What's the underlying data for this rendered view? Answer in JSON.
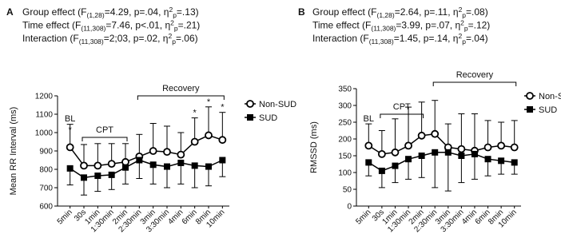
{
  "chart_data": [
    {
      "type": "line",
      "panel": "A",
      "stats": [
        [
          "Group effect (F",
          "(1,28)",
          "=4.29, p=.04, η",
          "2",
          "p",
          "=.13)"
        ],
        [
          "Time effect (F",
          "(11,308)",
          "=7.46, p<.01, η",
          "2",
          "p",
          "=.21)"
        ],
        [
          "Interaction (F",
          "(11,308)",
          "=2;03, p=.02, η",
          "2",
          "p",
          "=.06)"
        ]
      ],
      "ylabel": "Mean RR Interval (ms)",
      "categories": [
        "5min",
        "30s",
        "1min",
        "1:30min",
        "2min",
        "2:30min",
        "3min",
        "3:30min",
        "4min",
        "6min",
        "8min",
        "10min"
      ],
      "series": [
        {
          "name": "Non-SUD",
          "color": "#000000",
          "marker": "circle-open",
          "error_direction": "up",
          "values": [
            920,
            820,
            820,
            830,
            840,
            870,
            900,
            895,
            880,
            950,
            985,
            960
          ],
          "errors": [
            125,
            115,
            120,
            110,
            100,
            120,
            150,
            140,
            120,
            130,
            155,
            150
          ]
        },
        {
          "name": "SUD",
          "color": "#000000",
          "marker": "square",
          "error_direction": "down",
          "values": [
            805,
            755,
            765,
            770,
            810,
            850,
            825,
            815,
            835,
            820,
            815,
            850
          ],
          "errors": [
            90,
            95,
            85,
            80,
            90,
            100,
            105,
            115,
            115,
            120,
            105,
            90
          ]
        }
      ],
      "ylim": [
        600,
        1200
      ],
      "yticks": [
        600,
        700,
        800,
        900,
        1000,
        1100,
        1200
      ],
      "baseline_label": "BL",
      "brackets": [
        "CPT",
        "Recovery"
      ],
      "asterisks": [
        "*",
        "*",
        "*",
        "*"
      ],
      "legend": "right"
    },
    {
      "type": "line",
      "panel": "B",
      "stats": [
        [
          "Group effect (F",
          "(1,28)",
          "=2.64, p=.11, η",
          "2",
          "p",
          "=.08)"
        ],
        [
          "Time effect (F",
          "(11,308)",
          "=3.99, p=.07, η",
          "2",
          "p",
          "=.12)"
        ],
        [
          "Interaction (F",
          "(11,308)",
          "=1.45, p=.14, η",
          "2",
          "p",
          "=.04)"
        ]
      ],
      "ylabel": "RMSSD (ms)",
      "categories": [
        "5min",
        "30s",
        "1min",
        "1:30min",
        "2min",
        "2:30min",
        "3min",
        "3:30min",
        "4min",
        "6min",
        "8min",
        "10min"
      ],
      "series": [
        {
          "name": "Non-SUD",
          "color": "#000000",
          "marker": "circle-open",
          "error_direction": "up",
          "values": [
            180,
            155,
            160,
            180,
            210,
            215,
            175,
            170,
            165,
            175,
            180,
            175
          ],
          "errors": [
            65,
            70,
            100,
            115,
            100,
            100,
            70,
            105,
            110,
            80,
            70,
            80
          ]
        },
        {
          "name": "SUD",
          "color": "#000000",
          "marker": "square",
          "error_direction": "down",
          "values": [
            130,
            105,
            120,
            140,
            150,
            160,
            160,
            150,
            155,
            140,
            135,
            130
          ],
          "errors": [
            40,
            50,
            50,
            60,
            65,
            105,
            115,
            80,
            75,
            50,
            40,
            35
          ]
        }
      ],
      "ylim": [
        0,
        350
      ],
      "yticks": [
        0,
        50,
        100,
        150,
        200,
        250,
        300,
        350
      ],
      "baseline_label": "BL",
      "brackets": [
        "CPT",
        "Recovery"
      ],
      "legend": "right"
    }
  ]
}
